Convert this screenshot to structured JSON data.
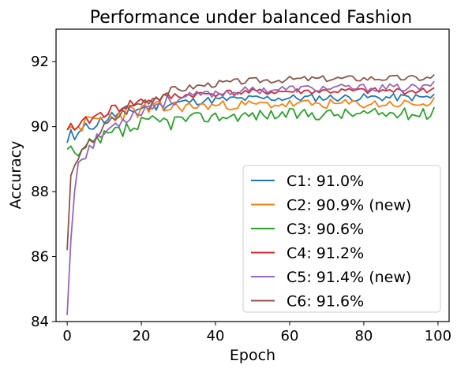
{
  "chart_data": {
    "type": "line",
    "title": "Performance under balanced Fashion",
    "xlabel": "Epoch",
    "ylabel": "Accuracy",
    "xlim": [
      -3,
      103
    ],
    "ylim": [
      84,
      93
    ],
    "xticks": [
      0,
      20,
      40,
      60,
      80,
      100
    ],
    "yticks": [
      84,
      86,
      88,
      90,
      92
    ],
    "grid": false,
    "legend_placement": "lower-right",
    "series_start": [
      {
        "name": "C1: 91.0%",
        "color": "#1f77b4",
        "start": [
          89.5,
          89.9,
          89.6,
          89.8
        ]
      },
      {
        "name": "C2: 90.9% (new)",
        "color": "#ff7f0e",
        "start": [
          89.9,
          90.0,
          89.9,
          90.0
        ]
      },
      {
        "name": "C3: 90.6%",
        "color": "#2ca02c",
        "start": [
          89.3,
          89.4,
          89.2,
          89.1
        ]
      },
      {
        "name": "C4: 91.2%",
        "color": "#d62728",
        "start": [
          89.9,
          90.1,
          89.9,
          90.0
        ]
      },
      {
        "name": "C5: 91.4% (new)",
        "color": "#9467bd",
        "start": [
          84.2,
          86.5,
          88.0,
          88.9
        ]
      },
      {
        "name": "C6: 91.6%",
        "color": "#8c564b",
        "start": [
          86.2,
          88.5,
          88.8,
          89.0
        ]
      }
    ],
    "series": [
      {
        "name": "C1: 91.0%",
        "color": "#1f77b4",
        "final": 91.0
      },
      {
        "name": "C2: 90.9% (new)",
        "color": "#ff7f0e",
        "final": 90.9
      },
      {
        "name": "C3: 90.6%",
        "color": "#2ca02c",
        "final": 90.6
      },
      {
        "name": "C4: 91.2%",
        "color": "#d62728",
        "final": 91.2
      },
      {
        "name": "C5: 91.4% (new)",
        "color": "#9467bd",
        "final": 91.4
      },
      {
        "name": "C6: 91.6%",
        "color": "#8c564b",
        "final": 91.6
      }
    ]
  }
}
